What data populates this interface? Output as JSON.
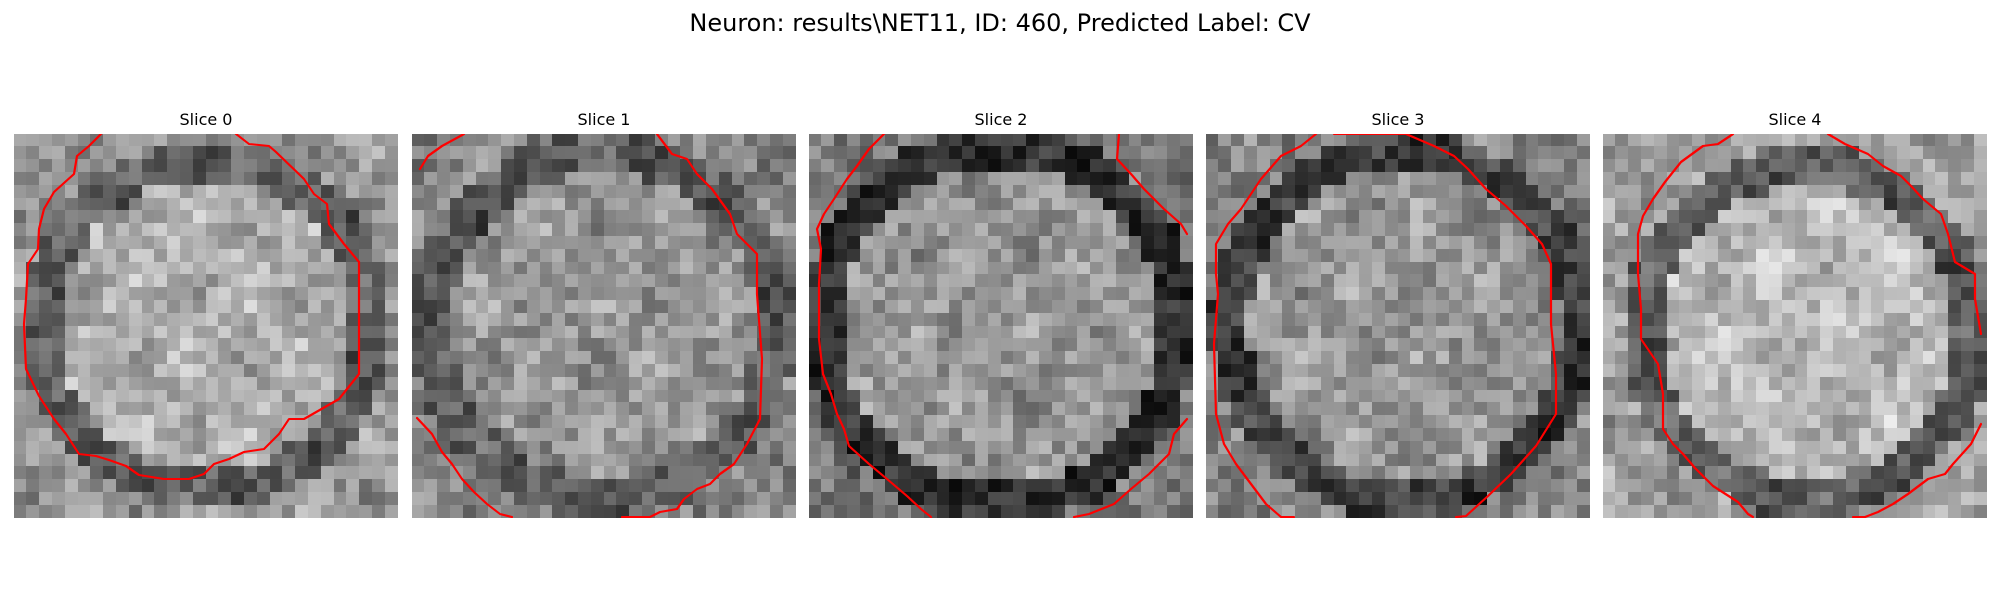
{
  "figure": {
    "title": "Neuron: results\\NET11, ID: 460, Predicted Label: CV"
  },
  "contour_color": "#ff0000",
  "slices": [
    {
      "title": "Slice 0"
    },
    {
      "title": "Slice 1"
    },
    {
      "title": "Slice 2"
    },
    {
      "title": "Slice 3"
    },
    {
      "title": "Slice 4"
    }
  ]
}
